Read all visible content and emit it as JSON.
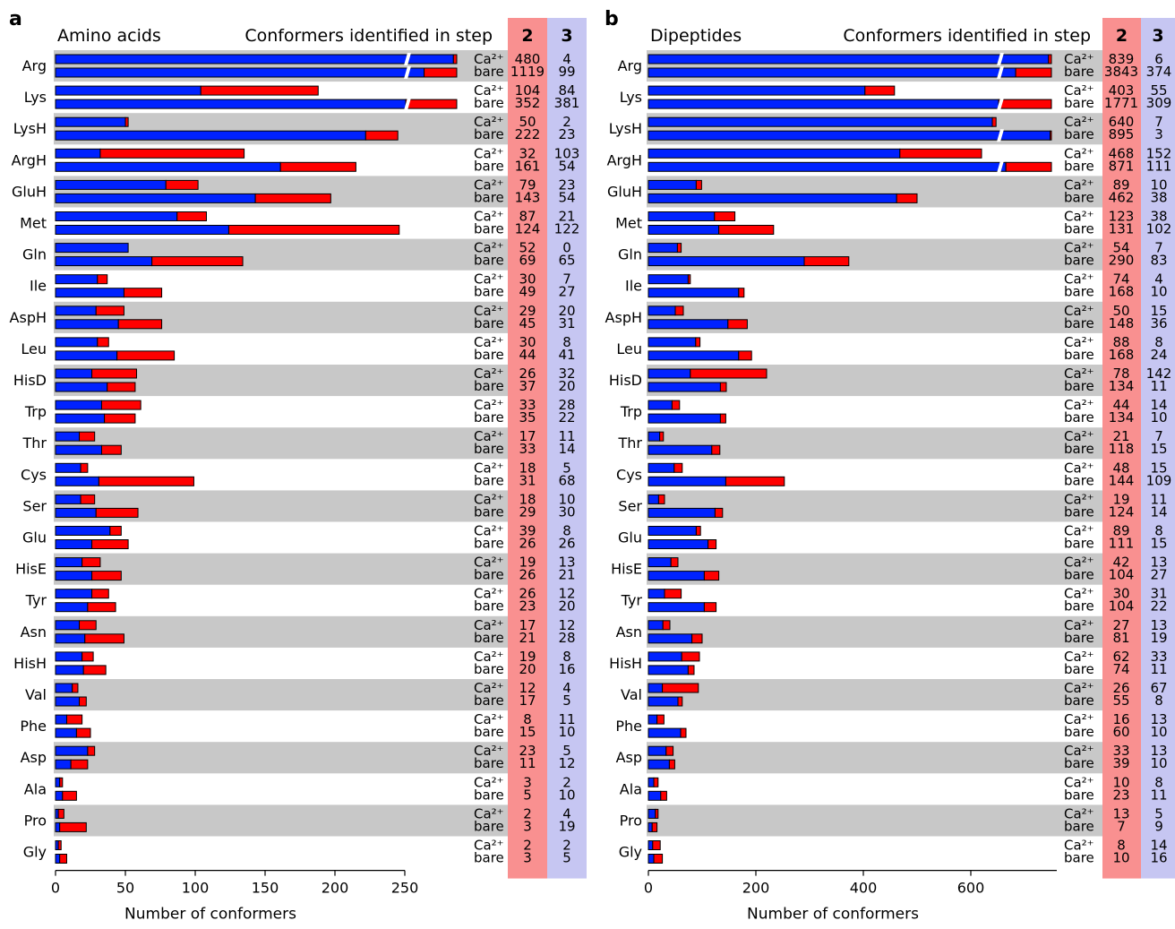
{
  "figure": {
    "row_labels": [
      "Arg",
      "Lys",
      "LysH",
      "ArgH",
      "GluH",
      "Met",
      "Gln",
      "Ile",
      "AspH",
      "Leu",
      "HisD",
      "Trp",
      "Thr",
      "Cys",
      "Ser",
      "Glu",
      "HisE",
      "Tyr",
      "Asn",
      "HisH",
      "Val",
      "Phe",
      "Asp",
      "Ala",
      "Pro",
      "Gly"
    ],
    "sub_labels": [
      "Ca²⁺",
      "bare"
    ],
    "step2_header": "2",
    "step3_header": "3",
    "colors": {
      "step2_bar": "#0022ff",
      "step3_bar": "#ff0000",
      "step2_band": "#f99090",
      "step3_band": "#c6c6f2",
      "row_band": "#c8c8c8"
    }
  },
  "chart_data": [
    {
      "type": "bar",
      "panel_label": "a",
      "title": "Amino acids",
      "table_header": "Conformers identified in step",
      "xlabel": "Number of conformers",
      "xlim": [
        0,
        250
      ],
      "xticks": [
        0,
        50,
        100,
        150,
        200,
        250
      ],
      "stacked": true,
      "orientation": "horizontal",
      "broken_bar_cap": 250,
      "series": [
        {
          "name": "2",
          "ca": [
            480,
            104,
            50,
            32,
            79,
            87,
            52,
            30,
            29,
            30,
            26,
            33,
            17,
            18,
            18,
            39,
            19,
            26,
            17,
            19,
            12,
            8,
            23,
            3,
            2,
            2
          ],
          "bare": [
            1119,
            352,
            222,
            161,
            143,
            124,
            69,
            49,
            45,
            44,
            37,
            35,
            33,
            31,
            29,
            26,
            26,
            23,
            21,
            20,
            17,
            15,
            11,
            5,
            3,
            3
          ]
        },
        {
          "name": "3",
          "ca": [
            4,
            84,
            2,
            103,
            23,
            21,
            0,
            7,
            20,
            8,
            32,
            28,
            11,
            5,
            10,
            8,
            13,
            12,
            12,
            8,
            4,
            11,
            5,
            2,
            4,
            2
          ],
          "bare": [
            99,
            381,
            23,
            54,
            54,
            122,
            65,
            27,
            31,
            41,
            20,
            22,
            14,
            68,
            30,
            26,
            21,
            20,
            28,
            16,
            5,
            10,
            12,
            10,
            19,
            5
          ]
        }
      ]
    },
    {
      "type": "bar",
      "panel_label": "b",
      "title": "Dipeptides",
      "table_header": "Conformers identified in step",
      "xlabel": "Number of conformers",
      "xlim": [
        0,
        760
      ],
      "xticks": [
        0,
        200,
        400,
        600
      ],
      "stacked": true,
      "orientation": "horizontal",
      "broken_bar_cap": 760,
      "series": [
        {
          "name": "2",
          "ca": [
            839,
            403,
            640,
            468,
            89,
            123,
            54,
            74,
            50,
            88,
            78,
            44,
            21,
            48,
            19,
            89,
            42,
            30,
            27,
            62,
            26,
            16,
            33,
            10,
            13,
            8
          ],
          "bare": [
            3843,
            1771,
            895,
            871,
            462,
            131,
            290,
            168,
            148,
            168,
            134,
            134,
            118,
            144,
            124,
            111,
            104,
            104,
            81,
            74,
            55,
            60,
            39,
            23,
            7,
            10
          ]
        },
        {
          "name": "3",
          "ca": [
            6,
            55,
            7,
            152,
            10,
            38,
            7,
            4,
            15,
            8,
            142,
            14,
            7,
            15,
            11,
            8,
            13,
            31,
            13,
            33,
            67,
            13,
            13,
            8,
            5,
            14
          ],
          "bare": [
            374,
            309,
            3,
            111,
            38,
            102,
            83,
            10,
            36,
            24,
            11,
            10,
            15,
            109,
            14,
            15,
            27,
            22,
            19,
            11,
            8,
            10,
            10,
            11,
            9,
            16
          ]
        }
      ]
    }
  ]
}
